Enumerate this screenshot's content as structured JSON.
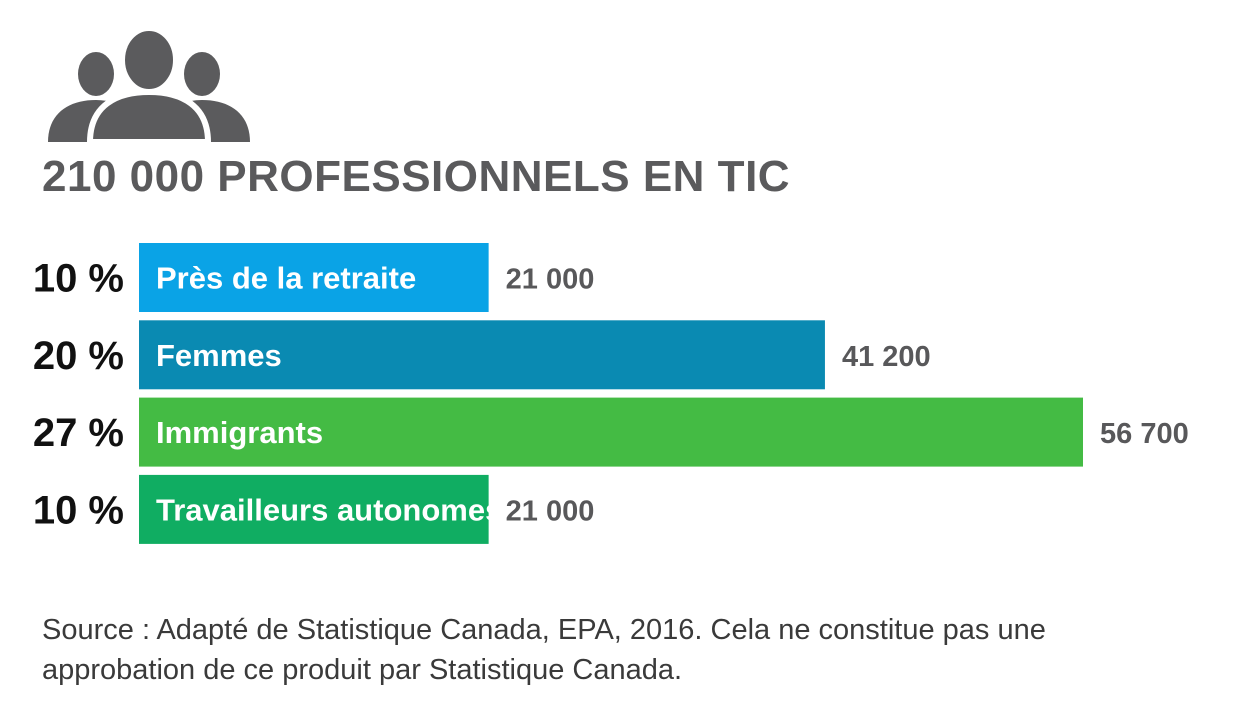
{
  "header": {
    "icon": "people-group-icon",
    "title": "210 000 PROFESSIONNELS EN TIC"
  },
  "chart_data": {
    "type": "bar",
    "orientation": "horizontal",
    "categories": [
      "Près de la retraite",
      "Femmes",
      "Immigrants",
      "Travailleurs autonomes"
    ],
    "values": [
      21000,
      41200,
      56700,
      21000
    ],
    "value_labels": [
      "21 000",
      "41 200",
      "56 700",
      "21 000"
    ],
    "percent_labels": [
      "10 %",
      "20 %",
      "27 %",
      "10 %"
    ],
    "total": 210000,
    "colors": [
      "#0aa3e6",
      "#0a8ab2",
      "#44bb44",
      "#10ad62"
    ],
    "title": "210 000 PROFESSIONNELS EN TIC",
    "xlim": [
      0,
      56700
    ],
    "grid": false,
    "legend": "none"
  },
  "footer": {
    "source": "Source : Adapté de Statistique Canada, EPA, 2016. Cela ne constitue pas une approbation de ce produit par Statistique Canada."
  }
}
